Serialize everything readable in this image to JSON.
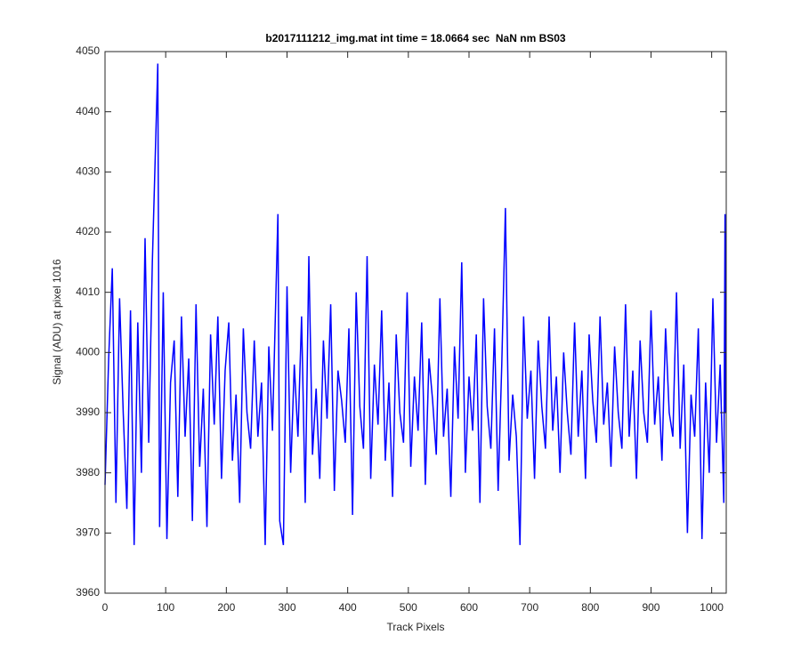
{
  "chart_data": {
    "type": "line",
    "title": "b2017111212_img.mat int time = 18.0664 sec  NaN nm BS03",
    "x_label": "Track Pixels",
    "y_label": "Signal (ADU) at pixel 1016",
    "xlim": [
      0,
      1024
    ],
    "ylim": [
      3960,
      4050
    ],
    "xticks": [
      0,
      100,
      200,
      300,
      400,
      500,
      600,
      700,
      800,
      900,
      1000
    ],
    "yticks": [
      3960,
      3970,
      3980,
      3990,
      4000,
      4010,
      4020,
      4030,
      4040,
      4050
    ],
    "grid": false,
    "x": [
      0,
      6,
      12,
      18,
      24,
      30,
      36,
      42,
      48,
      54,
      60,
      66,
      72,
      78,
      87,
      90,
      96,
      102,
      108,
      114,
      120,
      126,
      132,
      138,
      144,
      150,
      156,
      162,
      168,
      174,
      180,
      186,
      192,
      198,
      204,
      210,
      216,
      222,
      228,
      234,
      240,
      246,
      252,
      258,
      264,
      270,
      276,
      285,
      288,
      294,
      300,
      306,
      312,
      318,
      324,
      330,
      336,
      342,
      348,
      354,
      360,
      366,
      372,
      378,
      384,
      390,
      396,
      402,
      408,
      414,
      420,
      426,
      432,
      438,
      444,
      450,
      456,
      462,
      468,
      474,
      480,
      486,
      492,
      498,
      504,
      510,
      516,
      522,
      528,
      534,
      540,
      546,
      552,
      558,
      564,
      570,
      576,
      582,
      588,
      594,
      600,
      606,
      612,
      618,
      624,
      630,
      636,
      642,
      648,
      654,
      660,
      666,
      672,
      678,
      684,
      690,
      696,
      702,
      708,
      714,
      720,
      726,
      732,
      738,
      744,
      750,
      756,
      762,
      768,
      774,
      780,
      786,
      792,
      798,
      804,
      810,
      816,
      822,
      828,
      834,
      840,
      846,
      852,
      858,
      864,
      870,
      876,
      882,
      888,
      894,
      900,
      906,
      912,
      918,
      924,
      930,
      936,
      942,
      948,
      954,
      960,
      966,
      972,
      978,
      984,
      990,
      996,
      1002,
      1008,
      1014,
      1020,
      1022,
      1023
    ],
    "series": [
      {
        "color": "#0000ff",
        "values": [
          3978,
          3999,
          4014,
          3975,
          4009,
          3990,
          3974,
          4007,
          3968,
          4005,
          3980,
          4019,
          3985,
          4015,
          4048,
          3971,
          4010,
          3969,
          3995,
          4002,
          3976,
          4006,
          3986,
          3999,
          3972,
          4008,
          3981,
          3994,
          3971,
          4003,
          3988,
          4006,
          3979,
          3997,
          4005,
          3982,
          3993,
          3975,
          4004,
          3990,
          3984,
          4002,
          3986,
          3995,
          3968,
          4001,
          3987,
          4023,
          3972,
          3968,
          4011,
          3980,
          3998,
          3986,
          4006,
          3975,
          4016,
          3983,
          3994,
          3979,
          4002,
          3989,
          4008,
          3977,
          3997,
          3992,
          3985,
          4004,
          3973,
          4010,
          3991,
          3984,
          4016,
          3979,
          3998,
          3988,
          4007,
          3982,
          3995,
          3976,
          4003,
          3990,
          3985,
          4010,
          3981,
          3996,
          3987,
          4005,
          3978,
          3999,
          3992,
          3983,
          4009,
          3986,
          3994,
          3976,
          4001,
          3989,
          4015,
          3980,
          3996,
          3987,
          4003,
          3975,
          4009,
          3991,
          3984,
          4004,
          3977,
          3998,
          4024,
          3982,
          3993,
          3986,
          3968,
          4006,
          3989,
          3997,
          3979,
          4002,
          3991,
          3984,
          4006,
          3987,
          3996,
          3980,
          4000,
          3990,
          3983,
          4005,
          3986,
          3997,
          3979,
          4003,
          3992,
          3985,
          4006,
          3988,
          3995,
          3981,
          4001,
          3990,
          3984,
          4008,
          3986,
          3997,
          3979,
          4002,
          3990,
          3985,
          4007,
          3988,
          3996,
          3982,
          4004,
          3990,
          3986,
          4010,
          3984,
          3998,
          3970,
          3993,
          3986,
          4004,
          3969,
          3995,
          3980,
          4009,
          3985,
          3998,
          3975,
          4023,
          3990
        ]
      }
    ]
  }
}
